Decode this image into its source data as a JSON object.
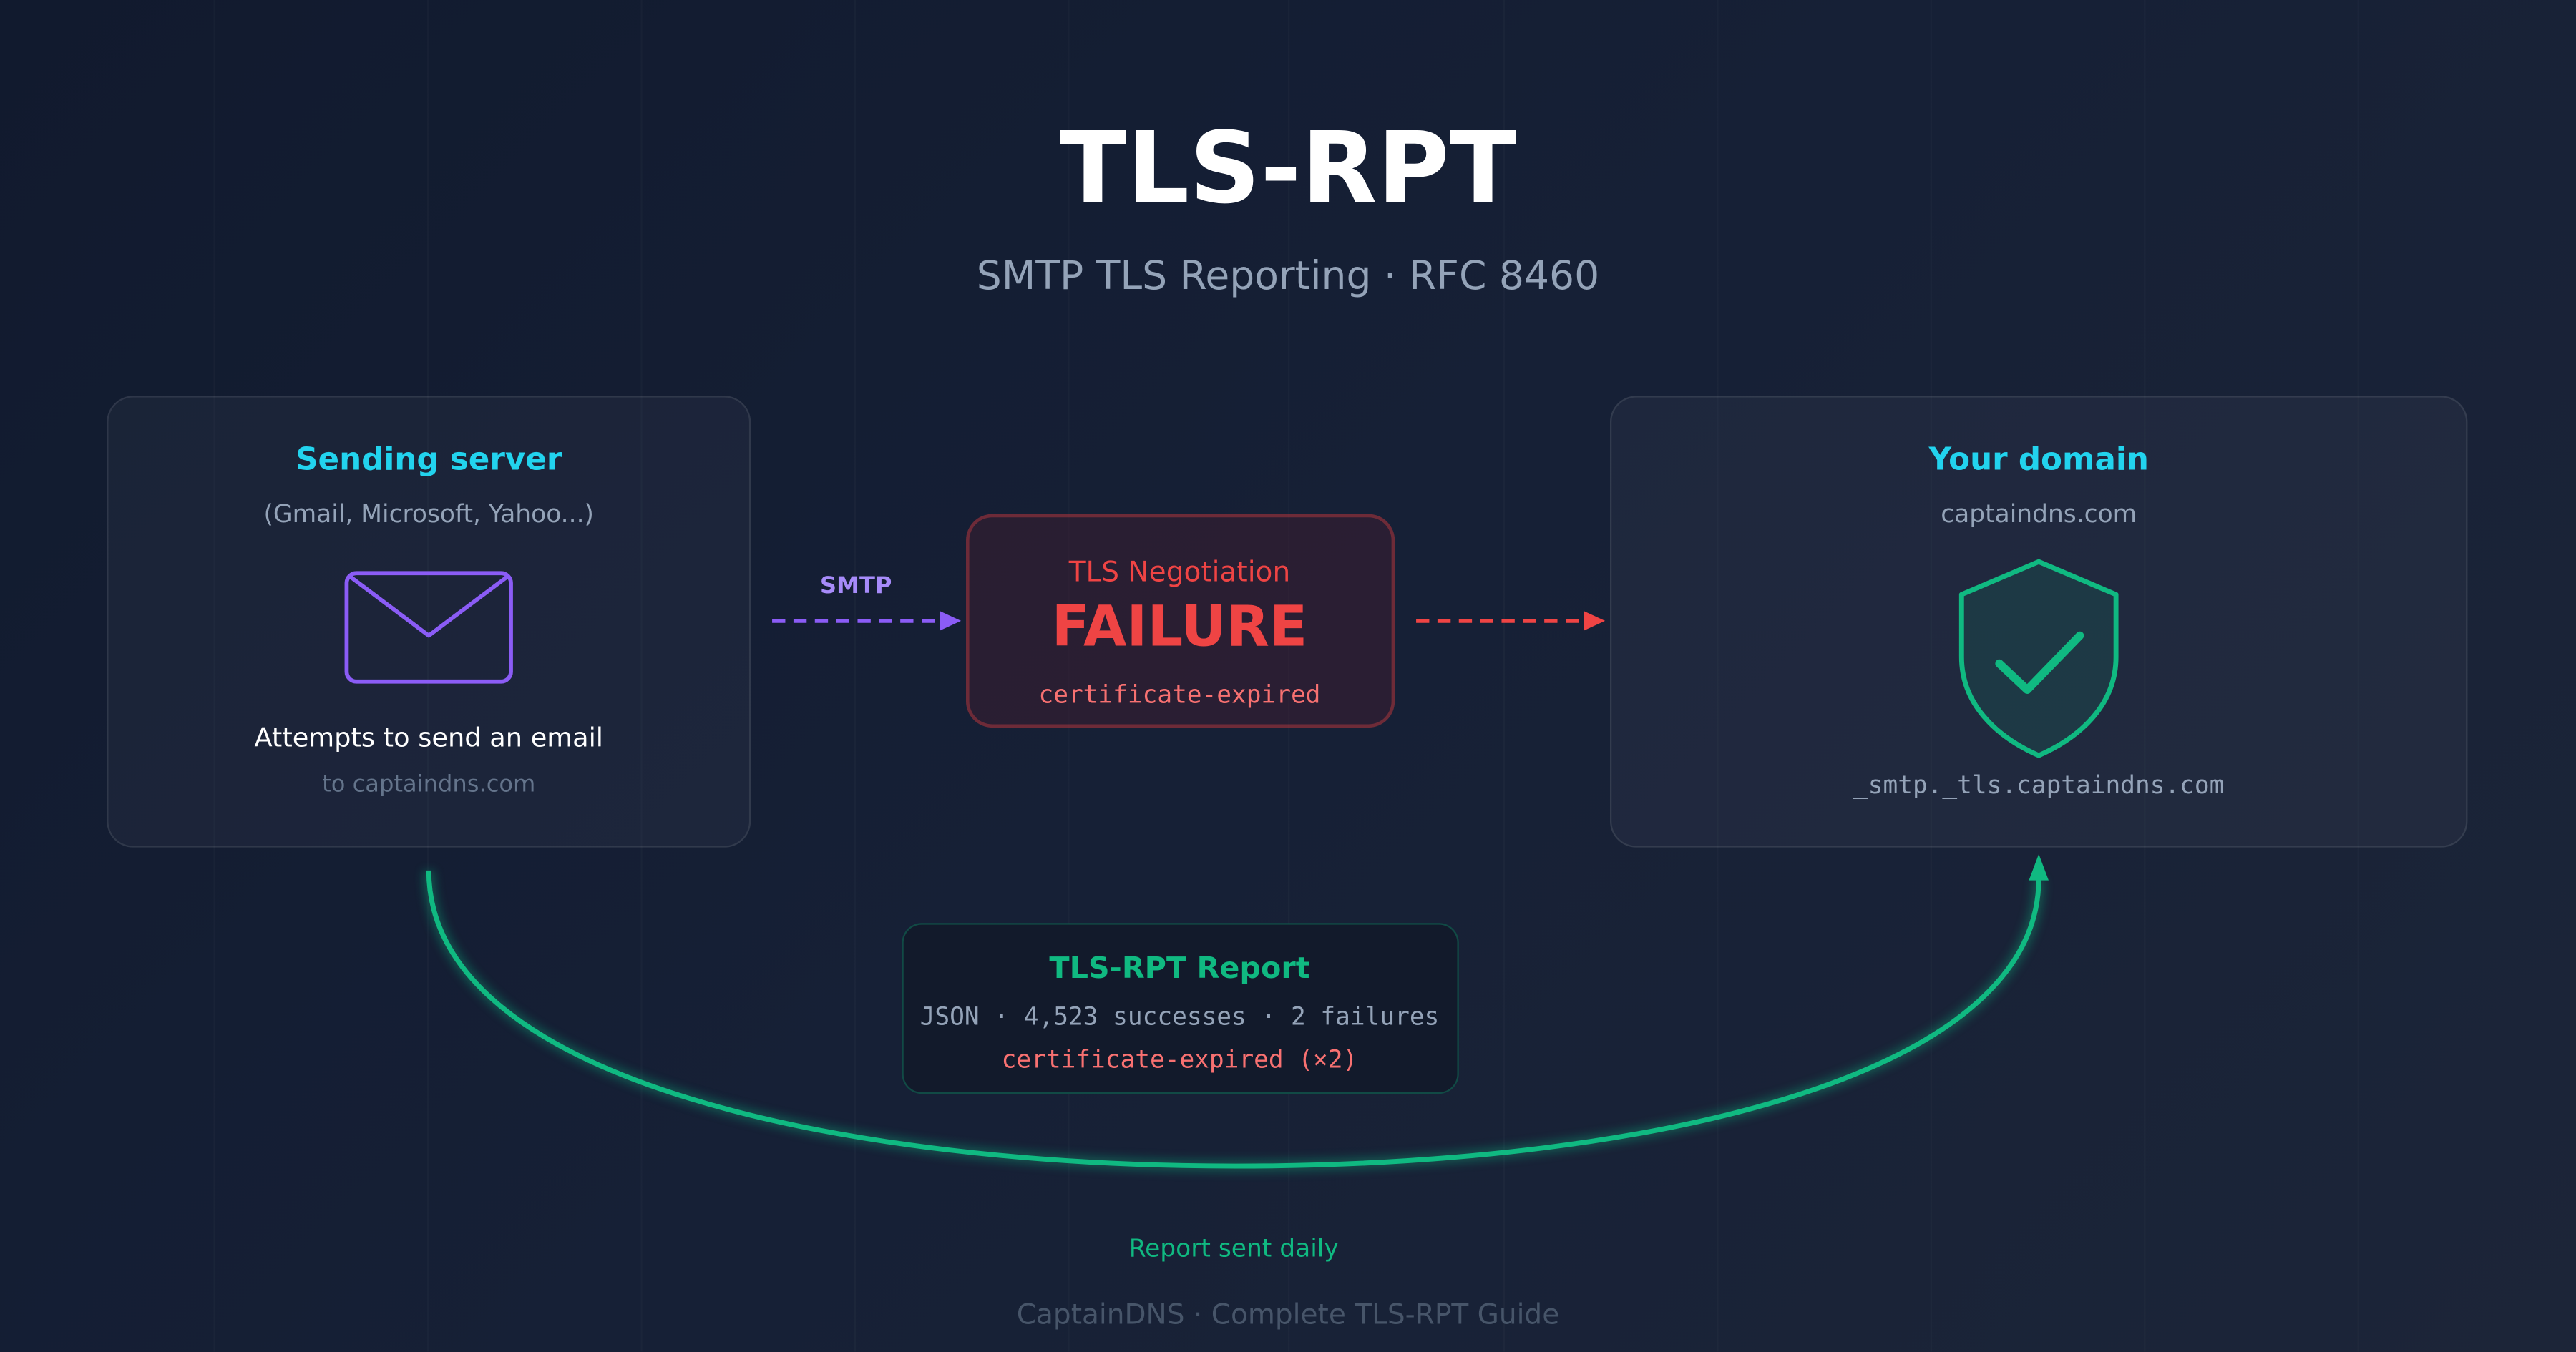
{
  "title": "TLS-RPT",
  "subtitle": "SMTP TLS Reporting · RFC 8460",
  "sender": {
    "heading": "Sending server",
    "providers": "(Gmail, Microsoft, Yahoo...)",
    "icon": "envelope-icon",
    "action": "Attempts to send an email",
    "target": "to captaindns.com"
  },
  "smtp_label": "SMTP",
  "failure": {
    "heading": "TLS Negotiation",
    "status": "FAILURE",
    "reason": "certificate-expired"
  },
  "domain": {
    "heading": "Your domain",
    "name": "captaindns.com",
    "icon": "shield-check-icon",
    "record": "_smtp._tls.captaindns.com"
  },
  "report": {
    "heading": "TLS-RPT Report",
    "summary": "JSON · 4,523 successes · 2 failures",
    "failure_detail": "certificate-expired (×2)"
  },
  "report_frequency": "Report sent daily",
  "footer": "CaptainDNS · Complete TLS-RPT Guide",
  "colors": {
    "cyan": "#22d3ee",
    "purple": "#8b5cf6",
    "red": "#ef4444",
    "green": "#10b981",
    "muted": "#94a3b8"
  }
}
